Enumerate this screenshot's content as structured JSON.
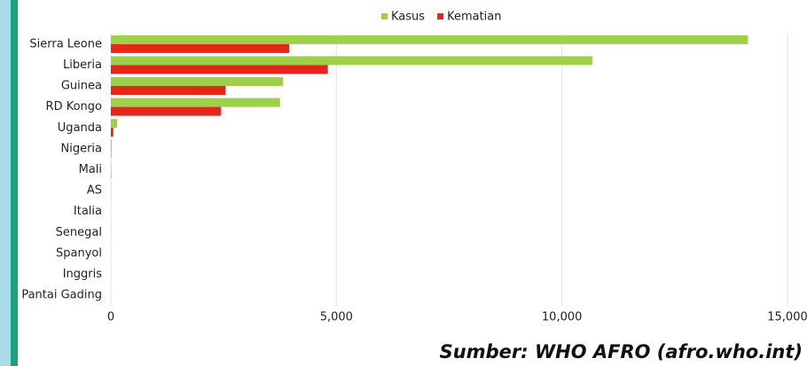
{
  "chart_data": {
    "type": "hbar",
    "categories": [
      "Sierra Leone",
      "Liberia",
      "Guinea",
      "RD Kongo",
      "Uganda",
      "Nigeria",
      "Mali",
      "AS",
      "Italia",
      "Senegal",
      "Spanyol",
      "Inggris",
      "Pantai Gading"
    ],
    "series": [
      {
        "name": "Kasus",
        "color": "#9fd04a",
        "values": [
          14124,
          10678,
          3814,
          3750,
          142,
          20,
          8,
          4,
          1,
          1,
          1,
          1,
          1
        ]
      },
      {
        "name": "Kematian",
        "color": "#e8241b",
        "values": [
          3956,
          4810,
          2544,
          2440,
          55,
          8,
          6,
          1,
          0,
          0,
          0,
          0,
          0
        ]
      }
    ],
    "xlim": [
      0,
      15000
    ],
    "xticks": [
      0,
      {
        "value": 5000,
        "label": "5,000"
      },
      {
        "value": 10000,
        "label": "10,000"
      },
      {
        "value": 15000,
        "label": "15,000"
      }
    ],
    "grid": true,
    "legend": "top",
    "source": "Sumber: WHO AFRO (afro.who.int)"
  }
}
